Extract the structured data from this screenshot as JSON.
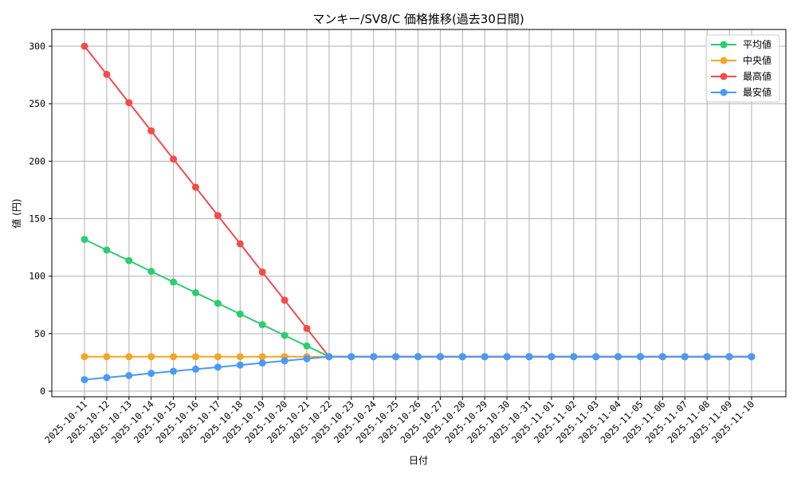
{
  "chart_data": {
    "type": "line",
    "title": "マンキー/SV8/C 価格推移(過去30日間)",
    "xlabel": "日付",
    "ylabel": "値 (円)",
    "ylim": [
      -5,
      315
    ],
    "yticks": [
      0,
      50,
      100,
      150,
      200,
      250,
      300
    ],
    "grid": true,
    "legend_position": "upper right",
    "x": [
      "2025-10-11",
      "2025-10-12",
      "2025-10-13",
      "2025-10-14",
      "2025-10-15",
      "2025-10-16",
      "2025-10-17",
      "2025-10-18",
      "2025-10-19",
      "2025-10-20",
      "2025-10-21",
      "2025-10-22",
      "2025-10-23",
      "2025-10-24",
      "2025-10-25",
      "2025-10-26",
      "2025-10-27",
      "2025-10-28",
      "2025-10-29",
      "2025-10-30",
      "2025-10-31",
      "2025-11-01",
      "2025-11-02",
      "2025-11-03",
      "2025-11-04",
      "2025-11-05",
      "2025-11-06",
      "2025-11-07",
      "2025-11-08",
      "2025-11-09",
      "2025-11-10"
    ],
    "series": [
      {
        "name": "平均値",
        "color": "#2ecc71",
        "values": [
          132,
          122.7,
          113.5,
          104.2,
          94.9,
          85.6,
          76.4,
          67.1,
          57.8,
          48.5,
          39.3,
          30,
          30,
          30,
          30,
          30,
          30,
          30,
          30,
          30,
          30,
          30,
          30,
          30,
          30,
          30,
          30,
          30,
          30,
          30,
          30
        ]
      },
      {
        "name": "中央値",
        "color": "#f5a623",
        "values": [
          30,
          30,
          30,
          30,
          30,
          30,
          30,
          30,
          30,
          30,
          30,
          30,
          30,
          30,
          30,
          30,
          30,
          30,
          30,
          30,
          30,
          30,
          30,
          30,
          30,
          30,
          30,
          30,
          30,
          30,
          30
        ]
      },
      {
        "name": "最高値",
        "color": "#f44b4b",
        "values": [
          300,
          275.5,
          250.9,
          226.4,
          201.8,
          177.3,
          152.7,
          128.2,
          103.6,
          79.1,
          54.5,
          30,
          30,
          30,
          30,
          30,
          30,
          30,
          30,
          30,
          30,
          30,
          30,
          30,
          30,
          30,
          30,
          30,
          30,
          30,
          30
        ]
      },
      {
        "name": "最安値",
        "color": "#4a9af5",
        "values": [
          10,
          11.8,
          13.6,
          15.5,
          17.3,
          19.1,
          20.9,
          22.7,
          24.5,
          26.4,
          28.2,
          30,
          30,
          30,
          30,
          30,
          30,
          30,
          30,
          30,
          30,
          30,
          30,
          30,
          30,
          30,
          30,
          30,
          30,
          30,
          30
        ]
      }
    ]
  }
}
